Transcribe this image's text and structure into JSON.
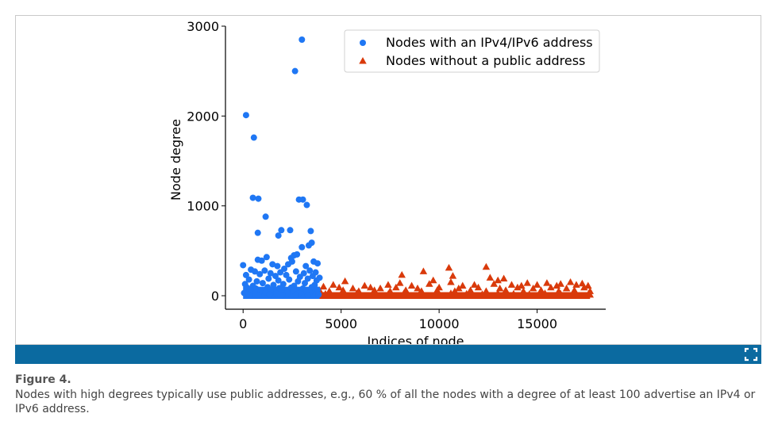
{
  "figure": {
    "label": "Figure 4.",
    "caption": "Nodes with high degrees typically use public addresses, e.g., 60 % of all the nodes with a degree of at least 100 advertise an IPv4 or IPv6 address."
  },
  "toolbar": {
    "expand_icon": "expand-icon"
  },
  "colors": {
    "ipv_series": "#1f77f4",
    "private_series": "#d93a0b",
    "bar": "#0b6aa0"
  },
  "chart_data": {
    "type": "scatter",
    "title": "",
    "xlabel": "Indices of node",
    "ylabel": "Node degree",
    "xlim": [
      -900,
      18500
    ],
    "ylim": [
      -150,
      3000
    ],
    "xticks": [
      0,
      5000,
      10000,
      15000
    ],
    "xtick_labels": [
      "0",
      "5000",
      "10000",
      "15000"
    ],
    "yticks": [
      0,
      1000,
      2000,
      3000
    ],
    "ytick_labels": [
      "0",
      "1000",
      "2000",
      "3000"
    ],
    "grid": false,
    "legend_position": "top-right",
    "series": [
      {
        "name": "Nodes with an IPv4/IPv6 address",
        "marker": "circle",
        "points": [
          [
            3000,
            2850
          ],
          [
            2650,
            2500
          ],
          [
            150,
            2010
          ],
          [
            550,
            1760
          ],
          [
            500,
            1090
          ],
          [
            780,
            1080
          ],
          [
            2850,
            1070
          ],
          [
            3050,
            1070
          ],
          [
            3250,
            1010
          ],
          [
            1150,
            880
          ],
          [
            750,
            700
          ],
          [
            1950,
            730
          ],
          [
            2400,
            730
          ],
          [
            1800,
            670
          ],
          [
            3450,
            720
          ],
          [
            3500,
            590
          ],
          [
            3350,
            560
          ],
          [
            3000,
            540
          ],
          [
            2600,
            450
          ],
          [
            2750,
            460
          ],
          [
            2450,
            420
          ],
          [
            0,
            340
          ],
          [
            750,
            400
          ],
          [
            950,
            390
          ],
          [
            1200,
            430
          ],
          [
            1500,
            350
          ],
          [
            1750,
            330
          ],
          [
            2100,
            300
          ],
          [
            2300,
            350
          ],
          [
            2500,
            380
          ],
          [
            3200,
            330
          ],
          [
            3600,
            380
          ],
          [
            3800,
            360
          ],
          [
            400,
            290
          ],
          [
            600,
            270
          ],
          [
            1100,
            280
          ],
          [
            1400,
            250
          ],
          [
            1900,
            260
          ],
          [
            2700,
            270
          ],
          [
            3100,
            250
          ],
          [
            3400,
            280
          ],
          [
            3700,
            260
          ],
          [
            150,
            230
          ],
          [
            850,
            240
          ],
          [
            1650,
            220
          ],
          [
            2200,
            230
          ],
          [
            2900,
            210
          ],
          [
            3550,
            220
          ],
          [
            3900,
            200
          ],
          [
            300,
            180
          ],
          [
            700,
            160
          ],
          [
            1300,
            190
          ],
          [
            1800,
            170
          ],
          [
            2350,
            180
          ],
          [
            2800,
            160
          ],
          [
            3300,
            190
          ],
          [
            3750,
            170
          ],
          [
            100,
            130
          ],
          [
            500,
            110
          ],
          [
            1000,
            140
          ],
          [
            1550,
            120
          ],
          [
            2050,
            130
          ],
          [
            2600,
            110
          ],
          [
            3150,
            140
          ],
          [
            3650,
            120
          ],
          [
            200,
            90
          ],
          [
            650,
            80
          ],
          [
            1250,
            95
          ],
          [
            1850,
            85
          ],
          [
            2450,
            90
          ],
          [
            3050,
            80
          ],
          [
            3500,
            95
          ],
          [
            400,
            60
          ],
          [
            900,
            50
          ],
          [
            1400,
            65
          ],
          [
            1950,
            55
          ],
          [
            2550,
            60
          ],
          [
            3250,
            50
          ],
          [
            3800,
            65
          ],
          [
            50,
            30
          ],
          [
            600,
            25
          ],
          [
            1150,
            35
          ],
          [
            1700,
            20
          ],
          [
            2250,
            30
          ],
          [
            2850,
            25
          ],
          [
            3400,
            35
          ],
          [
            300,
            10
          ],
          [
            800,
            5
          ],
          [
            1350,
            12
          ],
          [
            2000,
            8
          ],
          [
            2700,
            10
          ],
          [
            3300,
            5
          ],
          [
            3850,
            12
          ]
        ]
      },
      {
        "name": "Nodes without a public address",
        "marker": "triangle",
        "points": [
          [
            12400,
            320
          ],
          [
            10500,
            310
          ],
          [
            9200,
            270
          ],
          [
            8100,
            230
          ],
          [
            10700,
            220
          ],
          [
            12600,
            200
          ],
          [
            13300,
            190
          ],
          [
            13000,
            170
          ],
          [
            9700,
            170
          ],
          [
            10600,
            150
          ],
          [
            14500,
            140
          ],
          [
            16700,
            150
          ],
          [
            16200,
            130
          ],
          [
            17300,
            135
          ],
          [
            15500,
            140
          ],
          [
            11800,
            120
          ],
          [
            5200,
            160
          ],
          [
            4600,
            120
          ],
          [
            6200,
            110
          ],
          [
            7400,
            120
          ],
          [
            8000,
            140
          ],
          [
            8600,
            110
          ],
          [
            9500,
            130
          ],
          [
            11200,
            110
          ],
          [
            12800,
            130
          ],
          [
            13700,
            120
          ],
          [
            14200,
            110
          ],
          [
            15000,
            120
          ],
          [
            16000,
            110
          ],
          [
            17000,
            120
          ],
          [
            17600,
            110
          ],
          [
            4100,
            100
          ],
          [
            4900,
            90
          ],
          [
            5600,
            80
          ],
          [
            6500,
            90
          ],
          [
            7000,
            80
          ],
          [
            7800,
            90
          ],
          [
            8900,
            80
          ],
          [
            10000,
            90
          ],
          [
            11000,
            80
          ],
          [
            12000,
            90
          ],
          [
            13100,
            80
          ],
          [
            14000,
            90
          ],
          [
            14800,
            80
          ],
          [
            15700,
            90
          ],
          [
            16500,
            80
          ],
          [
            17400,
            90
          ],
          [
            3900,
            60
          ],
          [
            4400,
            50
          ],
          [
            5100,
            60
          ],
          [
            5900,
            50
          ],
          [
            6700,
            60
          ],
          [
            7500,
            50
          ],
          [
            8300,
            60
          ],
          [
            9100,
            50
          ],
          [
            9900,
            60
          ],
          [
            10800,
            50
          ],
          [
            11600,
            60
          ],
          [
            12400,
            50
          ],
          [
            13400,
            60
          ],
          [
            14300,
            50
          ],
          [
            15200,
            60
          ],
          [
            16100,
            50
          ],
          [
            16900,
            60
          ],
          [
            17700,
            50
          ],
          [
            4200,
            20
          ],
          [
            5000,
            15
          ],
          [
            5800,
            25
          ],
          [
            6600,
            20
          ],
          [
            7400,
            15
          ],
          [
            8200,
            25
          ],
          [
            9000,
            20
          ],
          [
            9800,
            15
          ],
          [
            10600,
            25
          ],
          [
            11400,
            20
          ],
          [
            12200,
            15
          ],
          [
            13000,
            25
          ],
          [
            13800,
            20
          ],
          [
            14600,
            15
          ],
          [
            15400,
            25
          ],
          [
            16200,
            20
          ],
          [
            17000,
            15
          ],
          [
            17700,
            10
          ]
        ]
      }
    ],
    "fill_band": {
      "ipv_band": {
        "x_start": 0,
        "x_end": 3900,
        "y_max": 100
      },
      "private_band": {
        "x_start": 3900,
        "x_end": 17700,
        "y_max": 40
      }
    }
  }
}
